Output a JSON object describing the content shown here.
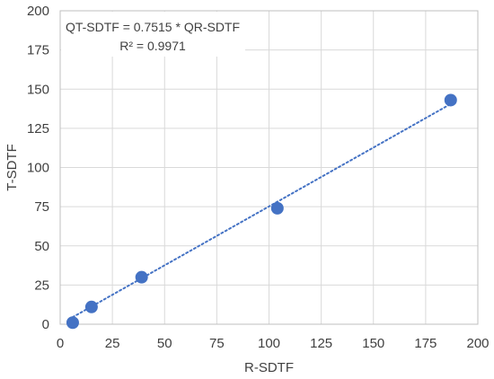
{
  "chart_data": {
    "type": "scatter",
    "xlabel": "R-SDTF",
    "ylabel": "T-SDTF",
    "xlim": [
      0,
      200
    ],
    "ylim": [
      0,
      200
    ],
    "xticks": [
      0,
      25,
      50,
      75,
      100,
      125,
      150,
      175,
      200
    ],
    "yticks": [
      0,
      25,
      50,
      75,
      100,
      125,
      150,
      175,
      200
    ],
    "grid": true,
    "series": [
      {
        "x": [
          6,
          15,
          39,
          104,
          187
        ],
        "y": [
          1,
          11,
          30,
          74,
          143
        ],
        "color": "#4472c4"
      }
    ],
    "trendline": {
      "slope": 0.7515,
      "style": "dotted",
      "color": "#4472c4",
      "x_range": [
        6,
        187
      ]
    },
    "annotation": {
      "equation": "QT-SDTF = 0.7515 * QR-SDTF",
      "r_squared": "R² = 0.9971",
      "position": "top-left"
    }
  }
}
